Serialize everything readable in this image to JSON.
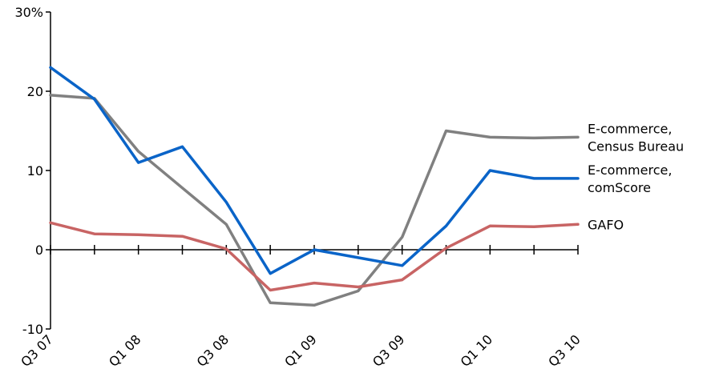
{
  "chart_data": {
    "type": "line",
    "title": "",
    "xlabel": "",
    "ylabel": "",
    "ylim": [
      -10,
      30
    ],
    "y_ticks": [
      {
        "value": -10,
        "label": "-10"
      },
      {
        "value": 0,
        "label": "0"
      },
      {
        "value": 10,
        "label": "10"
      },
      {
        "value": 20,
        "label": "20"
      },
      {
        "value": 30,
        "label": "30%"
      }
    ],
    "categories": [
      "Q3 07",
      "Q4 07",
      "Q1 08",
      "Q2 08",
      "Q3 08",
      "Q4 08",
      "Q1 09",
      "Q2 09",
      "Q3 09",
      "Q4 09",
      "Q1 10",
      "Q2 10",
      "Q3 10"
    ],
    "x_tick_labels": [
      "Q3 07",
      "",
      "Q1 08",
      "",
      "Q3 08",
      "",
      "Q1 09",
      "",
      "Q3 09",
      "",
      "Q1 10",
      "",
      "Q3 10"
    ],
    "grid": false,
    "legend": "right-end labels",
    "series": [
      {
        "name": "E-commerce, Census Bureau",
        "label_lines": [
          "E-commerce,",
          "Census Bureau"
        ],
        "color": "#808080",
        "values": [
          19.5,
          19.1,
          12.4,
          7.8,
          3.2,
          -6.7,
          -7.0,
          -5.2,
          1.6,
          15.0,
          14.2,
          14.1,
          14.2
        ]
      },
      {
        "name": "E-commerce, comScore",
        "label_lines": [
          "E-commerce,",
          "comScore"
        ],
        "color": "#0a64c8",
        "values": [
          23.0,
          19.0,
          11.0,
          13.0,
          6.0,
          -3.0,
          0.0,
          -1.0,
          -2.0,
          3.0,
          10.0,
          9.0,
          9.0
        ]
      },
      {
        "name": "GAFO",
        "label_lines": [
          "GAFO"
        ],
        "color": "#c86464",
        "values": [
          3.4,
          2.0,
          1.9,
          1.7,
          0.1,
          -5.1,
          -4.2,
          -4.7,
          -3.8,
          0.2,
          3.0,
          2.9,
          3.2
        ]
      }
    ]
  }
}
